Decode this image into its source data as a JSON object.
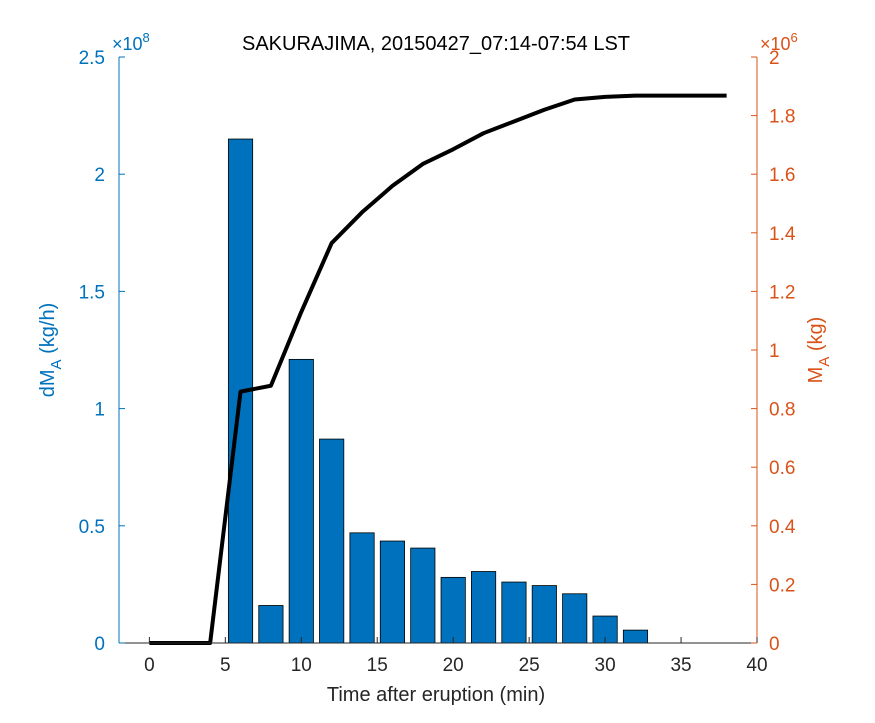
{
  "chart_data": {
    "type": "bar",
    "title": "SAKURAJIMA, 20150427_07:14-07:54 LST",
    "xlabel": "Time after eruption (min)",
    "ylabel_left": {
      "main": "dM",
      "sub": "A",
      "unit": " (kg/h)"
    },
    "ylabel_right": {
      "main": "M",
      "sub": "A",
      "unit": " (kg)"
    },
    "xlim": [
      -2,
      40
    ],
    "xticks": [
      0,
      5,
      10,
      15,
      20,
      25,
      30,
      35,
      40
    ],
    "ylim_left": [
      0,
      2.5
    ],
    "yticks_left": [
      0,
      0.5,
      1,
      1.5,
      2,
      2.5
    ],
    "ytick_labels_left": [
      "0",
      "0.5",
      "1",
      "1.5",
      "2",
      "2.5"
    ],
    "left_exponent": {
      "base": "×10",
      "power": "8"
    },
    "ylim_right": [
      0,
      2
    ],
    "yticks_right": [
      0,
      0.2,
      0.4,
      0.6,
      0.8,
      1,
      1.2,
      1.4,
      1.6,
      1.8,
      2
    ],
    "ytick_labels_right": [
      "0",
      "0.2",
      "0.4",
      "0.6",
      "0.8",
      "1",
      "1.2",
      "1.4",
      "1.6",
      "1.8",
      "2"
    ],
    "right_exponent": {
      "base": "×10",
      "power": "6"
    },
    "colors": {
      "left_axis": "#0072BD",
      "right_axis": "#D95319",
      "bar": "#0072BD",
      "line": "#000000"
    },
    "bars": {
      "name": "dMA",
      "width": 1.6,
      "x": [
        6,
        8,
        10,
        12,
        14,
        16,
        18,
        20,
        22,
        24,
        26,
        28,
        30,
        32
      ],
      "values": [
        2.15,
        0.16,
        1.21,
        0.87,
        0.47,
        0.435,
        0.405,
        0.28,
        0.305,
        0.26,
        0.245,
        0.21,
        0.115,
        0.055
      ]
    },
    "line": {
      "name": "MA",
      "x": [
        0,
        2,
        4,
        6,
        8,
        10,
        12,
        14,
        16,
        18,
        20,
        22,
        24,
        26,
        28,
        30,
        32,
        34,
        36,
        38
      ],
      "values": [
        0,
        0,
        0,
        0.858,
        0.878,
        1.13,
        1.365,
        1.47,
        1.56,
        1.635,
        1.685,
        1.74,
        1.78,
        1.82,
        1.855,
        1.864,
        1.868,
        1.868,
        1.868,
        1.868
      ]
    }
  }
}
